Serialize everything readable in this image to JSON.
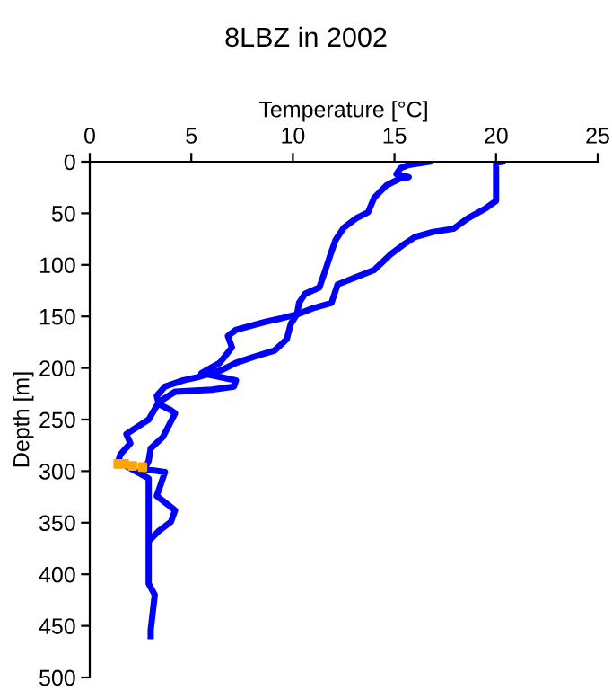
{
  "chart_data": {
    "type": "line",
    "title": "8LBZ in 2002",
    "xlabel": "Temperature [°C]",
    "ylabel": "Depth [m]",
    "xlim": [
      0,
      25
    ],
    "xticks": [
      0,
      5,
      10,
      15,
      20,
      25
    ],
    "ylim": [
      500,
      0
    ],
    "yticks": [
      0,
      50,
      100,
      150,
      200,
      250,
      300,
      350,
      400,
      450,
      500
    ],
    "grid": false,
    "series": [
      {
        "color": "#0000ff",
        "values": [
          0,
          1,
          17,
          38,
          45,
          55,
          65,
          68,
          73,
          81,
          90,
          105,
          112,
          119,
          137,
          142,
          148,
          157,
          172,
          183,
          189,
          195,
          202,
          209,
          212,
          218,
          227,
          235,
          241,
          244,
          267,
          278,
          290,
          298,
          301,
          324,
          338,
          349,
          358,
          366
        ],
        "x": [
          20.3,
          20.0,
          20.0,
          20.0,
          19.5,
          18.6,
          17.9,
          16.9,
          16.0,
          15.4,
          14.8,
          14.0,
          13.1,
          12.2,
          11.9,
          11.0,
          10.2,
          9.9,
          9.7,
          9.1,
          8.1,
          7.2,
          6.5,
          5.3,
          4.6,
          3.7,
          3.3,
          3.4,
          4.0,
          4.2,
          3.6,
          3.0,
          2.9,
          2.7,
          3.7,
          3.3,
          4.2,
          4.0,
          3.4,
          3.0
        ]
      },
      {
        "color": "#0000ff",
        "values": [
          0,
          3,
          6,
          12,
          15,
          16,
          23,
          35,
          49,
          55,
          64,
          76,
          87,
          105,
          122,
          128,
          137,
          148,
          152,
          155,
          163,
          169,
          180,
          195,
          205,
          212,
          218,
          221,
          223,
          233,
          250,
          264,
          273,
          284,
          291,
          307,
          386,
          409,
          420,
          454,
          460
        ],
        "x": [
          16.7,
          15.7,
          15.3,
          15.1,
          15.7,
          15.3,
          14.6,
          14.0,
          13.7,
          13.1,
          12.5,
          12.1,
          11.9,
          11.6,
          11.3,
          10.6,
          10.3,
          10.2,
          9.4,
          8.7,
          7.2,
          6.8,
          7.0,
          6.4,
          5.5,
          7.2,
          7.1,
          6.0,
          4.2,
          3.4,
          2.9,
          1.8,
          2.0,
          1.5,
          1.4,
          2.9,
          2.9,
          2.9,
          3.2,
          3.0,
          3.0
        ]
      },
      {
        "type": "scatter",
        "color": "#ffa500",
        "values": [
          293,
          293,
          295,
          296
        ],
        "x": [
          1.4,
          1.7,
          2.1,
          2.6
        ]
      }
    ]
  }
}
